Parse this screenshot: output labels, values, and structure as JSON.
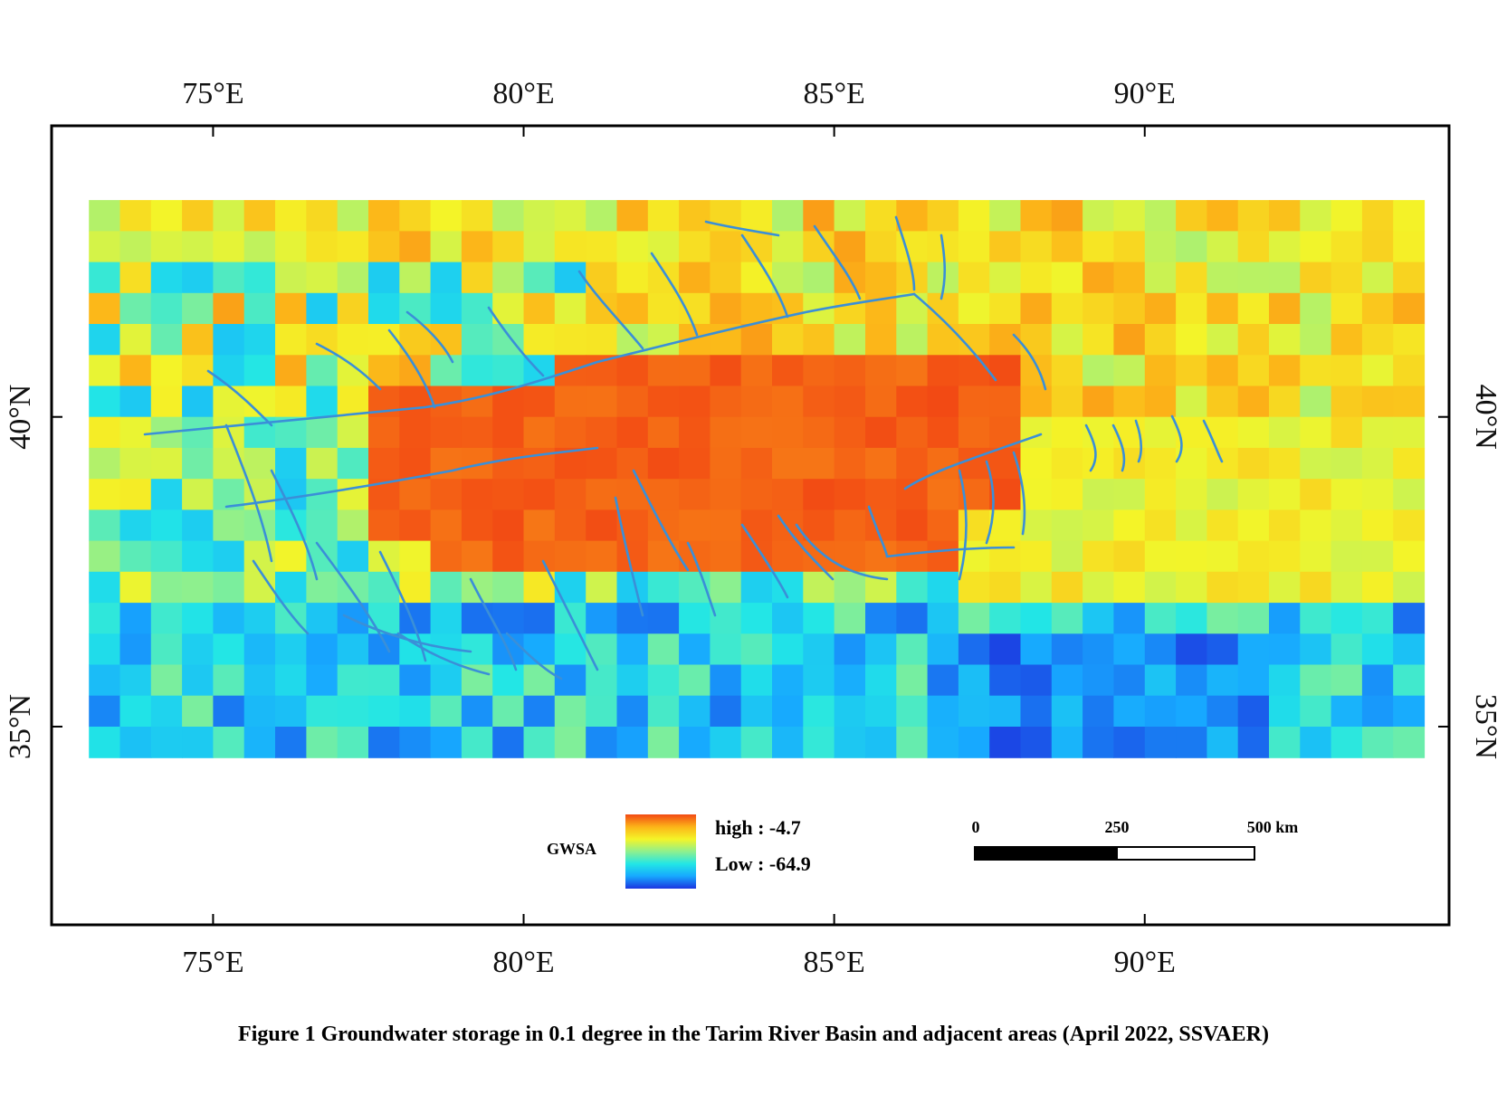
{
  "map": {
    "top_axis_labels": [
      "75°E",
      "80°E",
      "85°E",
      "90°E"
    ],
    "bottom_axis_labels": [
      "75°E",
      "80°E",
      "85°E",
      "90°E"
    ],
    "left_axis_labels": [
      "40°N",
      "35°N"
    ],
    "right_axis_labels": [
      "40°N",
      "35°N"
    ],
    "lon_ticks": [
      75,
      80,
      85,
      90
    ],
    "lat_ticks": [
      40,
      35
    ],
    "extent": {
      "lon_min": 72.4,
      "lon_max": 94.9,
      "lat_min": 31.8,
      "lat_max": 44.7
    },
    "data_extent": {
      "lon_min": 73.0,
      "lon_max": 94.5,
      "lat_min": 34.5,
      "lat_max": 43.5
    }
  },
  "legend": {
    "title": "GWSA",
    "high_label": "high : -4.7",
    "low_label": "Low : -64.9",
    "high_value": -4.7,
    "low_value": -64.9
  },
  "scale_bar": {
    "labels": [
      "0",
      "250",
      "500 km"
    ],
    "distances_km": [
      0,
      250,
      500
    ]
  },
  "colors": {
    "ramp": [
      "#1c36e0",
      "#17a8ff",
      "#22e6e6",
      "#8ef08e",
      "#f4f428",
      "#fcb418",
      "#f24a14"
    ],
    "river": "#3a8fd8",
    "frame": "#000000"
  },
  "caption": "Figure 1  Groundwater storage in 0.1 degree in the Tarim River Basin and adjacent areas (April 2022, SSVAER)"
}
